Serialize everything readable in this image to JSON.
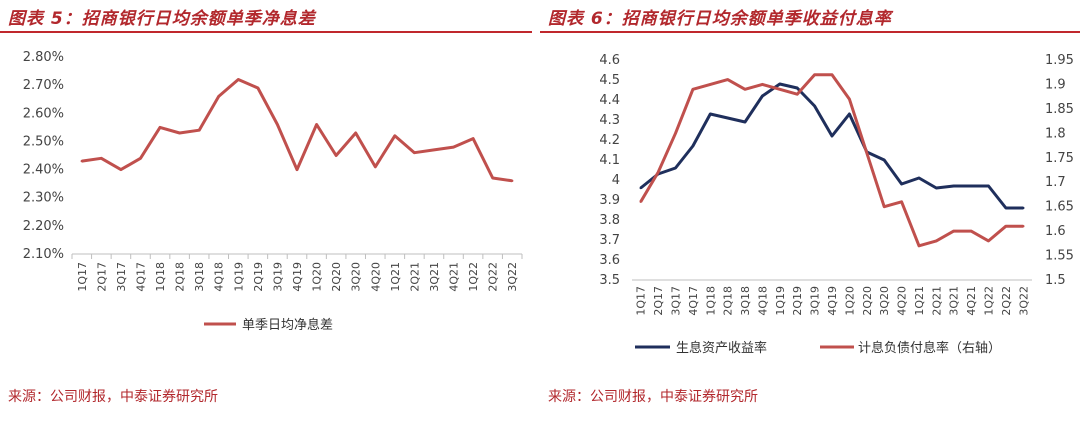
{
  "charts": {
    "left": {
      "title": "图表 5：招商银行日均余额单季净息差",
      "source": "来源：公司财报，中泰证券研究所"
    },
    "right": {
      "title": "图表 6：招商银行日均余额单季收益付息率",
      "source": "来源：公司财报，中泰证券研究所"
    }
  },
  "chart_data": [
    {
      "type": "line",
      "categories": [
        "1Q17",
        "2Q17",
        "3Q17",
        "4Q17",
        "1Q18",
        "2Q18",
        "3Q18",
        "4Q18",
        "1Q19",
        "2Q19",
        "3Q19",
        "4Q19",
        "1Q20",
        "2Q20",
        "3Q20",
        "4Q20",
        "1Q21",
        "2Q21",
        "3Q21",
        "4Q21",
        "1Q22",
        "2Q22",
        "3Q22"
      ],
      "yticks": [
        "2.10%",
        "2.20%",
        "2.30%",
        "2.40%",
        "2.50%",
        "2.60%",
        "2.70%",
        "2.80%"
      ],
      "ylim": [
        2.1,
        2.8
      ],
      "series": [
        {
          "name": "单季日均净息差",
          "color": "#c0504d",
          "values": [
            2.43,
            2.44,
            2.4,
            2.44,
            2.55,
            2.53,
            2.54,
            2.66,
            2.72,
            2.69,
            2.56,
            2.4,
            2.56,
            2.45,
            2.53,
            2.41,
            2.52,
            2.46,
            2.47,
            2.48,
            2.51,
            2.37,
            2.36
          ]
        }
      ],
      "legend_position": "bottom",
      "grid": false
    },
    {
      "type": "line",
      "categories": [
        "1Q17",
        "2Q17",
        "3Q17",
        "4Q17",
        "1Q18",
        "2Q18",
        "3Q18",
        "4Q18",
        "1Q19",
        "2Q19",
        "3Q19",
        "4Q19",
        "1Q20",
        "2Q20",
        "3Q20",
        "4Q20",
        "1Q21",
        "2Q21",
        "3Q21",
        "4Q21",
        "1Q22",
        "2Q22",
        "3Q22"
      ],
      "yticks_left": [
        "3.5",
        "3.6",
        "3.7",
        "3.8",
        "3.9",
        "4",
        "4.1",
        "4.2",
        "4.3",
        "4.4",
        "4.5",
        "4.6"
      ],
      "ylim_left": [
        3.5,
        4.6
      ],
      "yticks_right": [
        "1.5",
        "1.55",
        "1.6",
        "1.65",
        "1.7",
        "1.75",
        "1.8",
        "1.85",
        "1.9",
        "1.95"
      ],
      "ylim_right": [
        1.5,
        1.95
      ],
      "series": [
        {
          "name": "生息资产收益率",
          "color": "#1f2f5c",
          "axis": "left",
          "values": [
            3.96,
            4.03,
            4.06,
            4.17,
            4.33,
            4.31,
            4.29,
            4.42,
            4.48,
            4.46,
            4.37,
            4.22,
            4.33,
            4.14,
            4.1,
            3.98,
            4.01,
            3.96,
            3.97,
            3.97,
            3.97,
            3.86,
            3.86
          ]
        },
        {
          "name": "计息负债付息率（右轴）",
          "color": "#c0504d",
          "axis": "right",
          "values": [
            1.66,
            1.72,
            1.8,
            1.89,
            1.9,
            1.91,
            1.89,
            1.9,
            1.89,
            1.88,
            1.92,
            1.92,
            1.87,
            1.76,
            1.65,
            1.66,
            1.57,
            1.58,
            1.6,
            1.6,
            1.58,
            1.61,
            1.61
          ]
        }
      ],
      "legend_position": "bottom",
      "grid": false
    }
  ]
}
